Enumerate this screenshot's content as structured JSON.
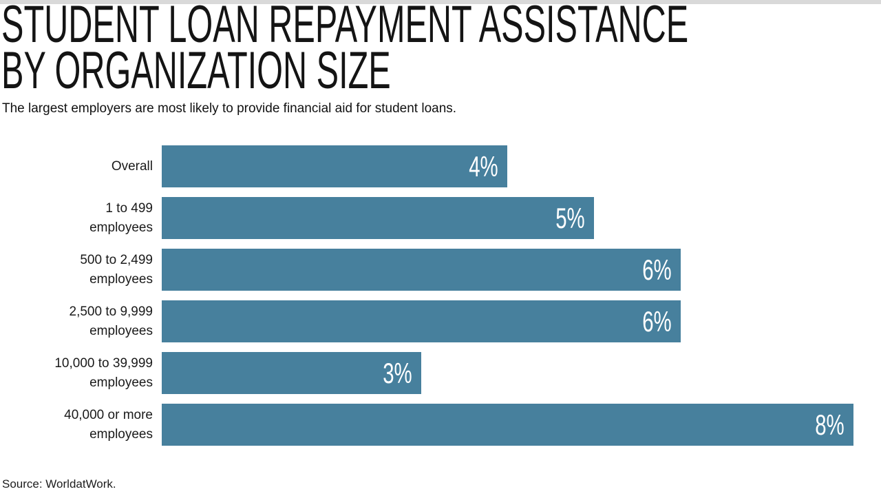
{
  "header": {
    "title_line1": "STUDENT LOAN REPAYMENT ASSISTANCE",
    "title_line2": "BY ORGANIZATION SIZE",
    "subtitle": "The largest employers are most likely to provide financial aid for student loans."
  },
  "chart_data": {
    "type": "bar",
    "orientation": "horizontal",
    "title": "STUDENT LOAN REPAYMENT ASSISTANCE BY ORGANIZATION SIZE",
    "subtitle": "The largest employers are most likely to provide financial aid for student loans.",
    "categories": [
      "Overall",
      "1 to 499 employees",
      "500 to 2,499 employees",
      "2,500 to 9,999 employees",
      "10,000 to 39,999 employees",
      "40,000 or more employees"
    ],
    "category_label_lines": [
      [
        "Overall"
      ],
      [
        "1 to 499",
        "employees"
      ],
      [
        "500 to 2,499",
        "employees"
      ],
      [
        "2,500 to 9,999",
        "employees"
      ],
      [
        "10,000 to 39,999",
        "employees"
      ],
      [
        "40,000 or more",
        "employees"
      ]
    ],
    "values": [
      4,
      5,
      6,
      6,
      3,
      8
    ],
    "value_labels": [
      "4%",
      "5%",
      "6%",
      "6%",
      "3%",
      "8%"
    ],
    "unit": "percent",
    "xlim": [
      0,
      8.3
    ],
    "grid": false,
    "legend": "none",
    "bar_color": "#47809D",
    "value_label_color": "#FFFFFF",
    "value_label_position": "inside-end"
  },
  "footer": {
    "source": "Source: WorldatWork."
  }
}
